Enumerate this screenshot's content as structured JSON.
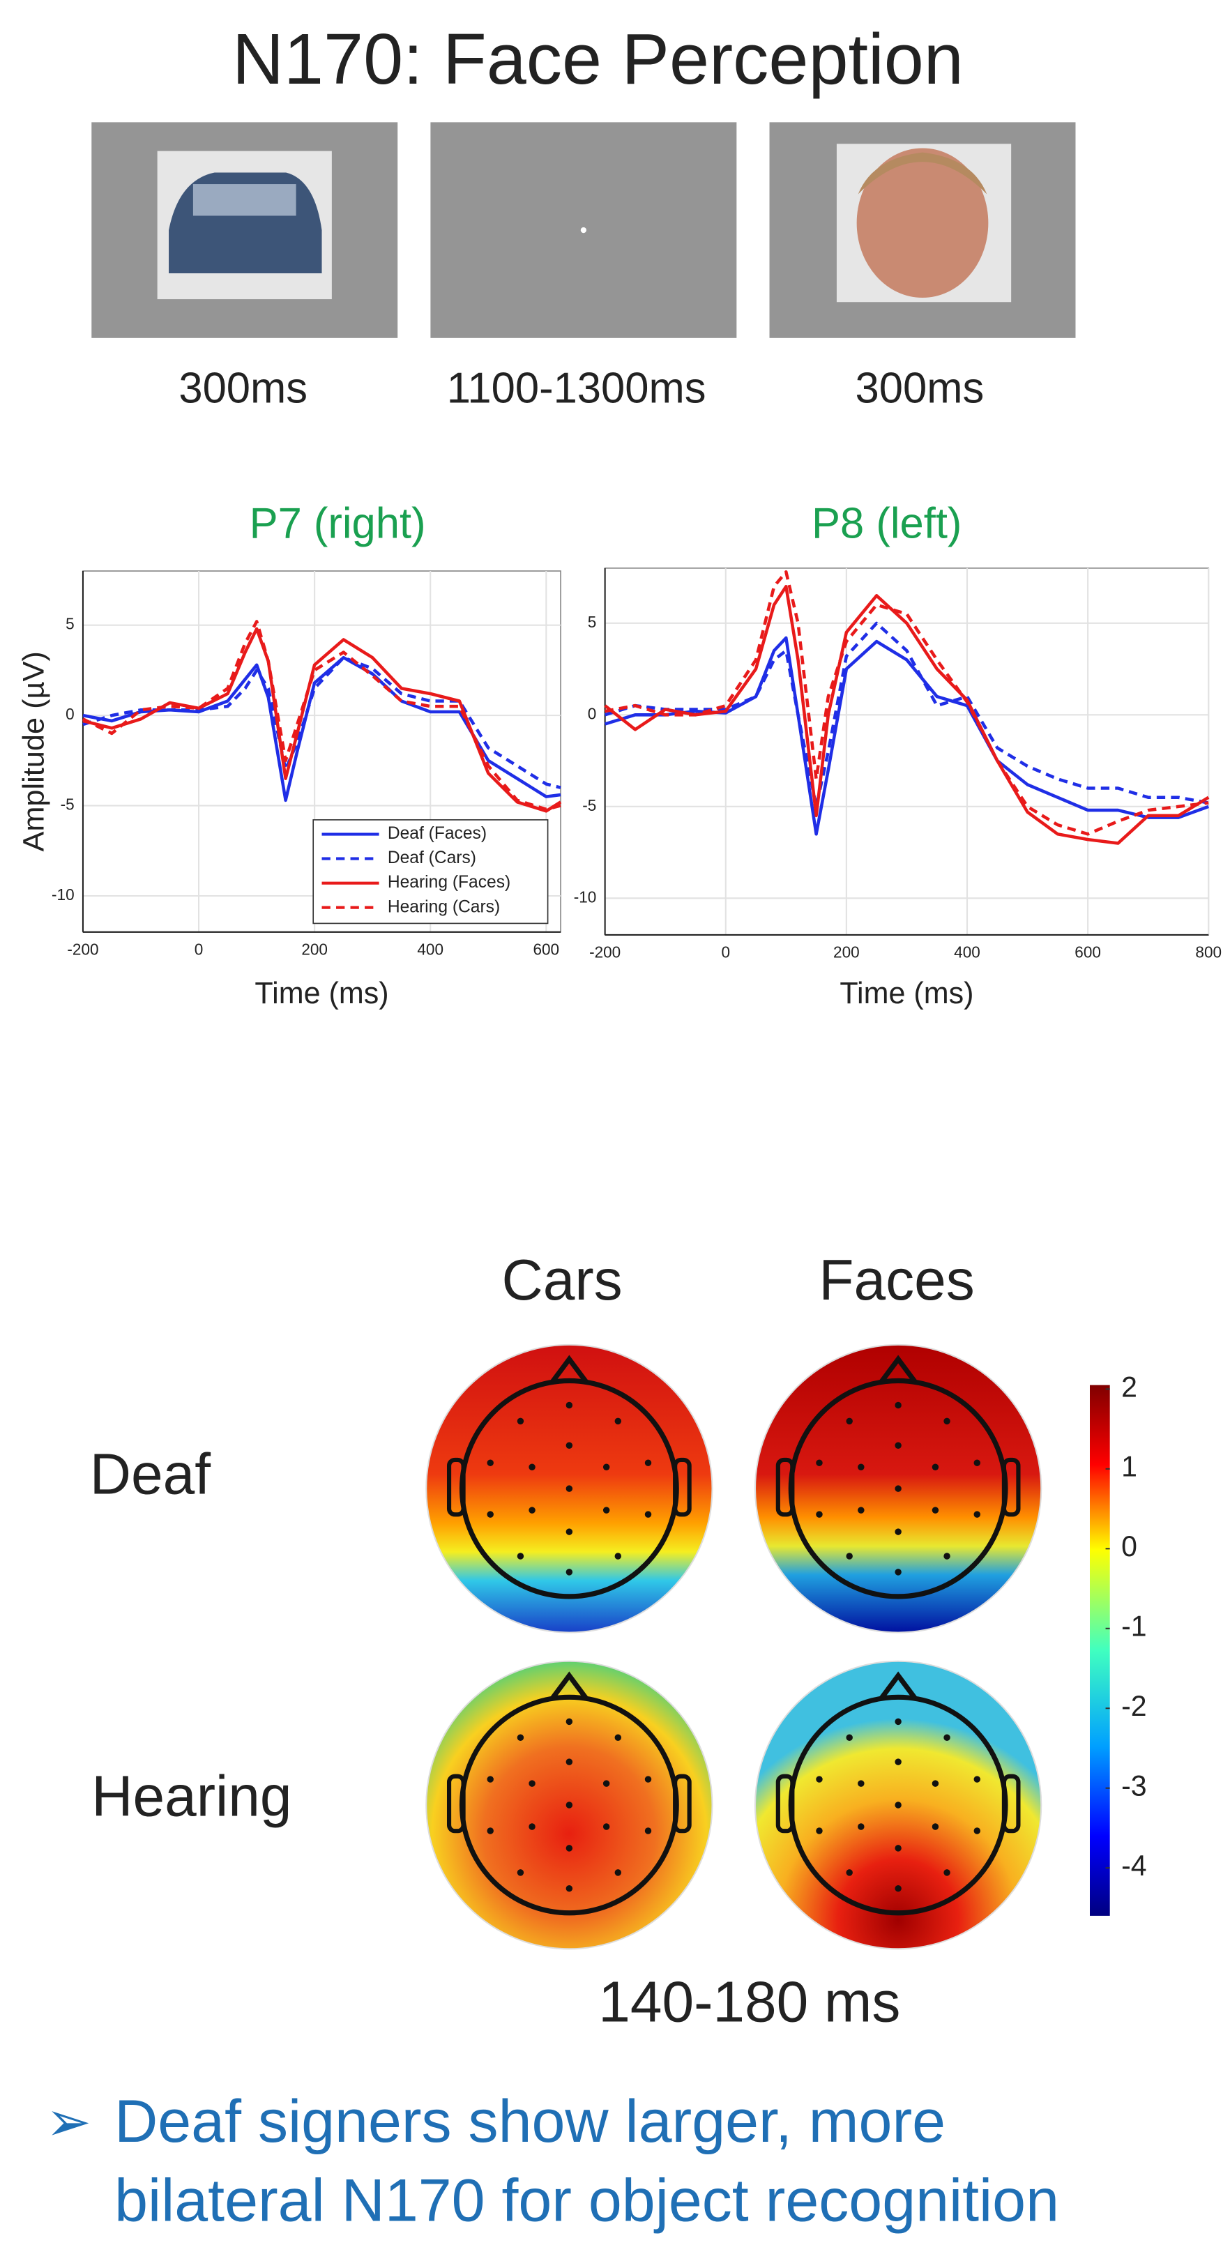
{
  "title": "N170: Face Perception",
  "stimuli": [
    "300ms",
    "1100-1300ms",
    "300ms"
  ],
  "chart_data": [
    {
      "type": "line",
      "title": "P7 (right)",
      "x_label": "Time (ms)",
      "y_label": "Amplitude (µV)",
      "x": [
        -200,
        -150,
        -100,
        -50,
        0,
        50,
        80,
        100,
        120,
        150,
        170,
        200,
        250,
        300,
        350,
        400,
        450,
        500,
        550,
        600,
        625
      ],
      "xlim": [
        -200,
        625
      ],
      "xticks": [
        -200,
        0,
        200,
        400,
        600
      ],
      "ylim": [
        -12,
        8
      ],
      "yticks": [
        -10,
        -5,
        0,
        5
      ],
      "grid": true,
      "legend": "lower right",
      "series": [
        {
          "name": "Deaf (Faces)",
          "color": "#1f2ee6",
          "dash": false,
          "values": [
            0,
            -0.3,
            0.2,
            0.3,
            0.2,
            0.8,
            2,
            2.8,
            1,
            -4.7,
            -2,
            1.8,
            3.2,
            2.3,
            0.8,
            0.2,
            0.2,
            -2.5,
            -3.5,
            -4.5,
            -4.4
          ]
        },
        {
          "name": "Deaf (Cars)",
          "color": "#1f2ee6",
          "dash": true,
          "values": [
            -0.5,
            0,
            0.3,
            0.3,
            0.3,
            0.5,
            1.5,
            2.5,
            1.5,
            -3,
            -1.5,
            1.5,
            3.2,
            2.6,
            1.2,
            0.8,
            0.8,
            -1.8,
            -2.8,
            -3.8,
            -4
          ]
        },
        {
          "name": "Hearing (Faces)",
          "color": "#e81a1a",
          "dash": false,
          "values": [
            -0.3,
            -0.7,
            -0.2,
            0.7,
            0.4,
            1.2,
            3.5,
            4.8,
            3,
            -3.5,
            -1,
            2.8,
            4.2,
            3.2,
            1.5,
            1.2,
            0.8,
            -3.2,
            -4.8,
            -5.3,
            -4.8
          ]
        },
        {
          "name": "Hearing (Cars)",
          "color": "#e81a1a",
          "dash": true,
          "values": [
            -0.2,
            -1,
            0.3,
            0.5,
            0.4,
            1.5,
            4,
            5.2,
            3,
            -2.5,
            -0.5,
            2.5,
            3.5,
            2.2,
            0.8,
            0.5,
            0.5,
            -2.8,
            -4.7,
            -5.2,
            -5
          ]
        }
      ]
    },
    {
      "type": "line",
      "title": "P8 (left)",
      "x_label": "Time (ms)",
      "x": [
        -200,
        -150,
        -100,
        -50,
        0,
        50,
        80,
        100,
        120,
        150,
        170,
        200,
        250,
        300,
        350,
        400,
        450,
        500,
        550,
        600,
        650,
        700,
        750,
        800
      ],
      "xlim": [
        -200,
        800
      ],
      "xticks": [
        -200,
        0,
        200,
        400,
        600,
        800
      ],
      "ylim": [
        -12,
        8
      ],
      "yticks": [
        -10,
        -5,
        0,
        5
      ],
      "grid": true,
      "series": [
        {
          "color": "#1f2ee6",
          "dash": false,
          "values": [
            -0.5,
            0,
            0,
            0.2,
            0.1,
            1,
            3.5,
            4.2,
            0,
            -6.5,
            -3,
            2.5,
            4,
            3,
            1,
            0.5,
            -2.5,
            -3.8,
            -4.5,
            -5.2,
            -5.2,
            -5.6,
            -5.6,
            -5
          ]
        },
        {
          "color": "#1f2ee6",
          "dash": true,
          "values": [
            0,
            0.5,
            0.3,
            0.3,
            0.3,
            1,
            3,
            3.5,
            0,
            -5,
            -2,
            3.2,
            5,
            3.5,
            0.5,
            1,
            -1.8,
            -2.8,
            -3.5,
            -4,
            -4,
            -4.5,
            -4.5,
            -4.8
          ]
        },
        {
          "color": "#e81a1a",
          "dash": false,
          "values": [
            0.5,
            -0.8,
            0.3,
            0,
            0.2,
            2.5,
            6,
            7,
            3,
            -5.5,
            0,
            4.5,
            6.5,
            5,
            2.5,
            0.8,
            -2.5,
            -5.3,
            -6.5,
            -6.8,
            -7,
            -5.5,
            -5.5,
            -4.5
          ]
        },
        {
          "color": "#e81a1a",
          "dash": true,
          "values": [
            0.2,
            0.5,
            0,
            0,
            0.5,
            3,
            7,
            7.8,
            5,
            -3.5,
            1,
            4,
            6,
            5.5,
            3,
            0.7,
            -2.5,
            -5,
            -6,
            -6.5,
            -5.8,
            -5.2,
            -5,
            -4.8
          ]
        }
      ]
    }
  ],
  "topomaps": {
    "columns": [
      "Cars",
      "Faces"
    ],
    "rows": [
      "Deaf",
      "Hearing"
    ],
    "window": "140-180 ms"
  },
  "colorbar": {
    "lim": [
      -4.6,
      2.05
    ],
    "ticks": [
      2,
      1,
      0,
      -1,
      -2,
      -3,
      -4
    ]
  },
  "bullet": {
    "marker": "➢",
    "lines": [
      "Deaf signers show larger, more",
      "bilateral N170 for object recognition"
    ]
  }
}
